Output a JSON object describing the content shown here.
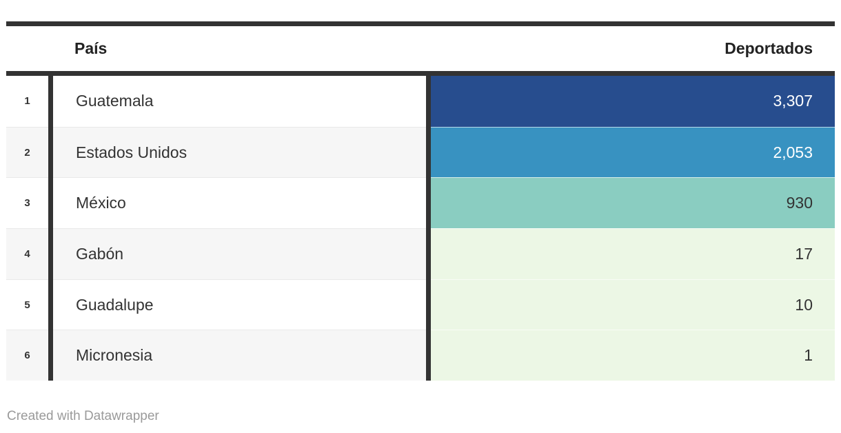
{
  "table": {
    "header": {
      "country": "País",
      "value": "Deportados"
    },
    "rows": [
      {
        "rank": "1",
        "country": "Guatemala",
        "value": "3,307",
        "cell_color": "#274d8e",
        "text_color": "#ffffff"
      },
      {
        "rank": "2",
        "country": "Estados Unidos",
        "value": "2,053",
        "cell_color": "#3892c1",
        "text_color": "#ffffff"
      },
      {
        "rank": "3",
        "country": "México",
        "value": "930",
        "cell_color": "#8acdc1",
        "text_color": "#333333"
      },
      {
        "rank": "4",
        "country": "Gabón",
        "value": "17",
        "cell_color": "#ecf7e5",
        "text_color": "#333333"
      },
      {
        "rank": "5",
        "country": "Guadalupe",
        "value": "10",
        "cell_color": "#ecf7e5",
        "text_color": "#333333"
      },
      {
        "rank": "6",
        "country": "Micronesia",
        "value": "1",
        "cell_color": "#ecf7e5",
        "text_color": "#333333"
      }
    ]
  },
  "colors": {
    "border": "#333333",
    "row_bg": "#ffffff",
    "row_bg_alt": "#f6f6f6",
    "separator": "#e9e9e9",
    "footer_text": "#9a9a9a"
  },
  "footer": {
    "attribution": "Created with Datawrapper"
  },
  "chart_data": {
    "type": "table",
    "title": "",
    "columns": [
      "País",
      "Deportados"
    ],
    "categories": [
      "Guatemala",
      "Estados Unidos",
      "México",
      "Gabón",
      "Guadalupe",
      "Micronesia"
    ],
    "values": [
      3307,
      2053,
      930,
      17,
      10,
      1
    ],
    "heatmap_colors": [
      "#274d8e",
      "#3892c1",
      "#8acdc1",
      "#ecf7e5",
      "#ecf7e5",
      "#ecf7e5"
    ],
    "legend_position": "none",
    "grid": false,
    "attribution": "Created with Datawrapper"
  }
}
